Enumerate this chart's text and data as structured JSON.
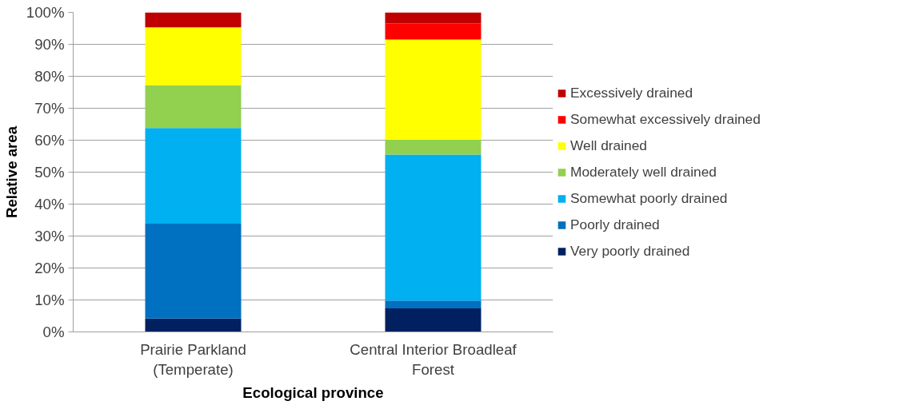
{
  "chart_data": {
    "type": "bar",
    "stacked": true,
    "xlabel": "Ecological province",
    "ylabel": "Relative area",
    "categories": [
      "Prairie Parkland (Temperate)",
      "Central Interior Broadleaf Forest"
    ],
    "series": [
      {
        "name": "Very poorly drained",
        "color": "#002060",
        "values": [
          4.2,
          7.4
        ]
      },
      {
        "name": "Poorly drained",
        "color": "#0070c0",
        "values": [
          29.7,
          2.4
        ]
      },
      {
        "name": "Somewhat poorly drained",
        "color": "#00b0f0",
        "values": [
          29.9,
          45.7
        ]
      },
      {
        "name": "Moderately well drained",
        "color": "#92d050",
        "values": [
          13.4,
          4.7
        ]
      },
      {
        "name": "Well drained",
        "color": "#ffff00",
        "values": [
          18.1,
          31.3
        ]
      },
      {
        "name": "Somewhat excessively drained",
        "color": "#ff0000",
        "values": [
          0,
          5.0
        ]
      },
      {
        "name": "Excessively drained",
        "color": "#c00000",
        "values": [
          4.7,
          3.5
        ]
      }
    ],
    "ylim": [
      0,
      100
    ],
    "yticks": [
      {
        "value": 0,
        "label": "0%"
      },
      {
        "value": 10,
        "label": "10%"
      },
      {
        "value": 20,
        "label": "20%"
      },
      {
        "value": 30,
        "label": "30%"
      },
      {
        "value": 40,
        "label": "40%"
      },
      {
        "value": 50,
        "label": "50%"
      },
      {
        "value": 60,
        "label": "60%"
      },
      {
        "value": 70,
        "label": "70%"
      },
      {
        "value": 80,
        "label": "80%"
      },
      {
        "value": 90,
        "label": "90%"
      },
      {
        "value": 100,
        "label": "100%"
      }
    ],
    "grid": "y",
    "legend": "right"
  }
}
